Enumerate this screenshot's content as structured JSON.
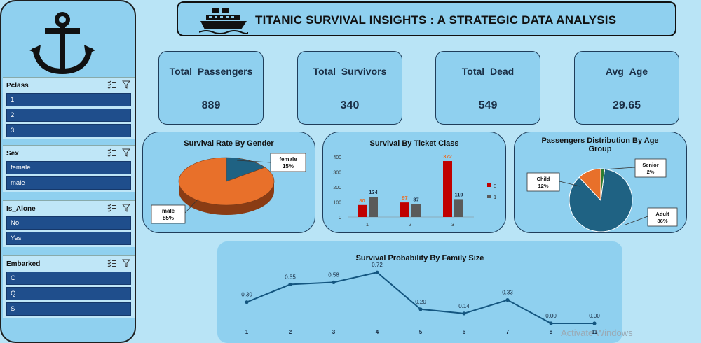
{
  "title": "TITANIC SURVIVAL INSIGHTS : A STRATEGIC DATA ANALYSIS",
  "colors": {
    "bar0": "#c00000",
    "bar1": "#5a5a5a",
    "male": "#e8702a",
    "female": "#1f6283",
    "adult": "#1f6283",
    "child": "#e8702a",
    "senior": "#2e7d32",
    "line": "#145680"
  },
  "slicers": [
    {
      "label": "Pclass",
      "items": [
        "1",
        "2",
        "3"
      ]
    },
    {
      "label": "Sex",
      "items": [
        "female",
        "male"
      ]
    },
    {
      "label": "Is_Alone",
      "items": [
        "No",
        "Yes"
      ]
    },
    {
      "label": "Embarked",
      "items": [
        "C",
        "Q",
        "S"
      ]
    }
  ],
  "kpis": [
    {
      "label": "Total_Passengers",
      "value": "889"
    },
    {
      "label": "Total_Survivors",
      "value": "340"
    },
    {
      "label": "Total_Dead",
      "value": "549"
    },
    {
      "label": "Avg_Age",
      "value": "29.65"
    }
  ],
  "watermark": "Activate Windows",
  "chart_data": [
    {
      "type": "pie",
      "title": "Survival Rate By Gender",
      "categories": [
        "female",
        "male"
      ],
      "values": [
        15,
        85
      ],
      "labels": [
        "15%",
        "85%"
      ]
    },
    {
      "type": "bar",
      "title": "Survival By Ticket Class",
      "categories": [
        "1",
        "2",
        "3"
      ],
      "series": [
        {
          "name": "0",
          "values": [
            80,
            97,
            372
          ]
        },
        {
          "name": "1",
          "values": [
            134,
            87,
            119
          ]
        }
      ],
      "yticks": [
        "0",
        "100",
        "200",
        "300",
        "400"
      ],
      "ylim": [
        0,
        400
      ],
      "legend": "right"
    },
    {
      "type": "pie",
      "title": "Passengers Distribution By Age Group",
      "categories": [
        "Adult",
        "Child",
        "Senior"
      ],
      "values": [
        86,
        12,
        2
      ],
      "labels": [
        "86%",
        "12%",
        "2%"
      ]
    },
    {
      "type": "line",
      "title": "Survival Probability By Family Size",
      "x": [
        "1",
        "2",
        "3",
        "4",
        "5",
        "6",
        "7",
        "8",
        "11"
      ],
      "values": [
        0.3,
        0.55,
        0.58,
        0.72,
        0.2,
        0.14,
        0.33,
        0.0,
        0.0
      ],
      "labels": [
        "0.30",
        "0.55",
        "0.58",
        "0.72",
        "0.20",
        "0.14",
        "0.33",
        "0.00",
        "0.00"
      ],
      "ylim": [
        0,
        0.8
      ]
    }
  ]
}
